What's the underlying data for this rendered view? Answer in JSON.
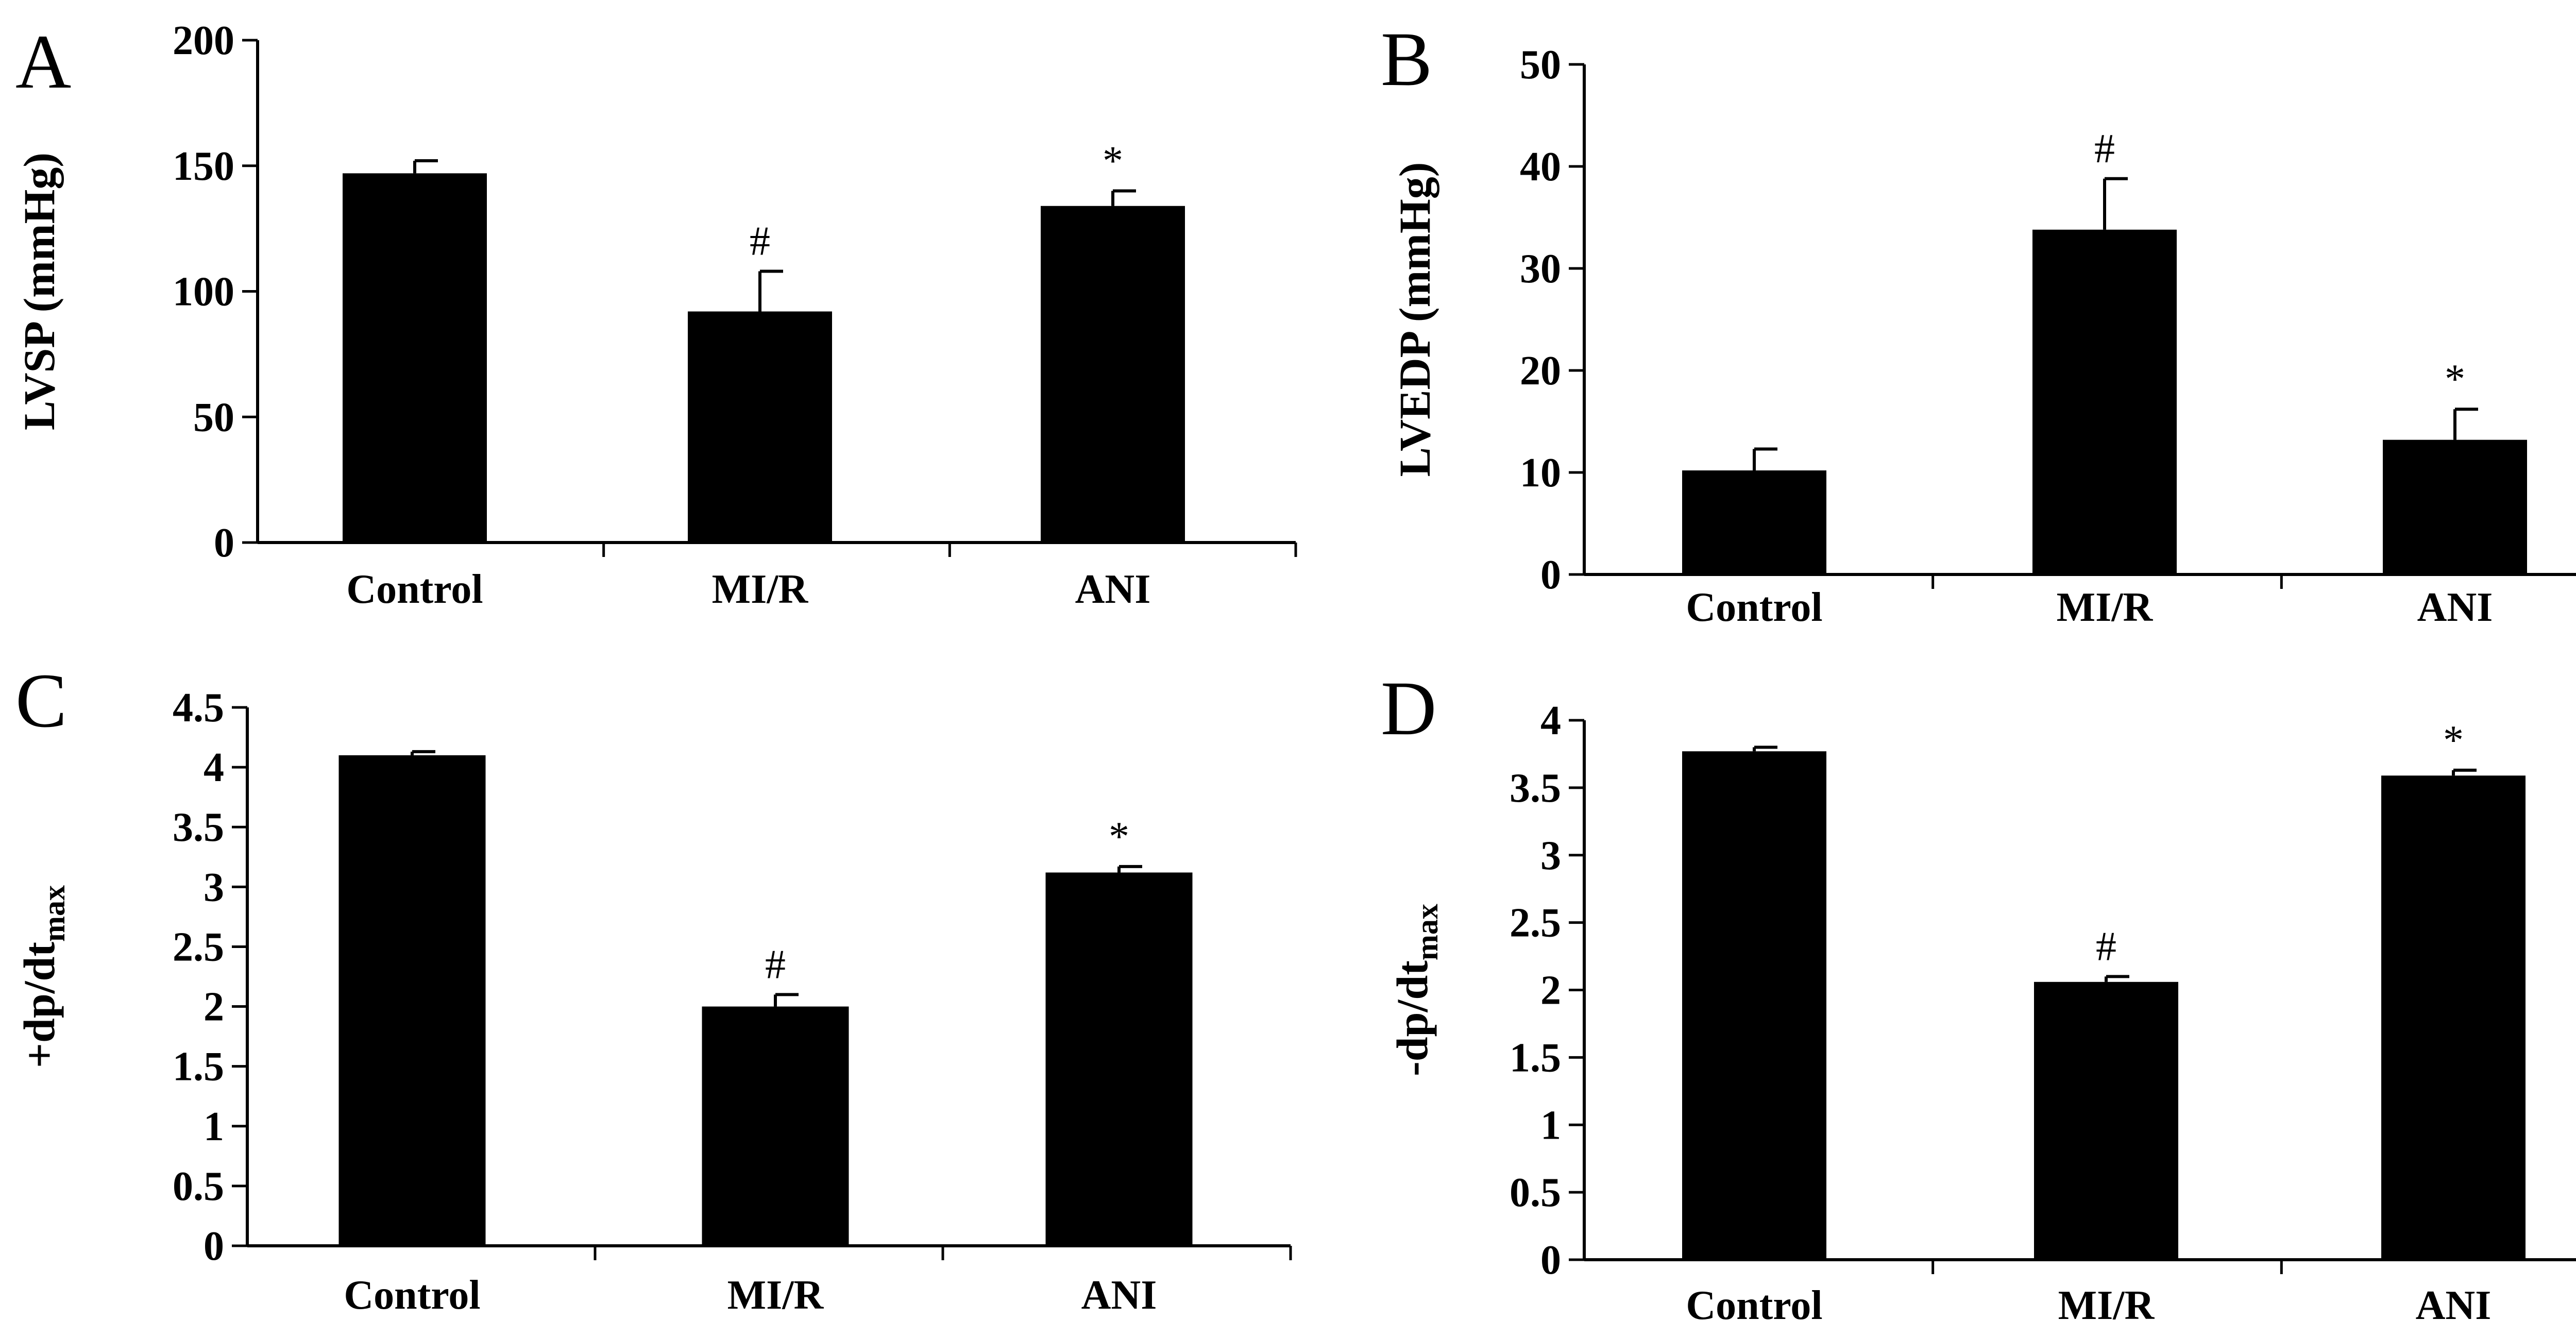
{
  "chart_data": [
    {
      "panel": "A",
      "type": "bar",
      "ylabel": "LVSP (mmHg)",
      "ylabel_sub": "",
      "categories": [
        "Control",
        "MI/R",
        "ANI"
      ],
      "values": [
        147,
        92,
        134
      ],
      "errors": [
        5,
        16,
        6
      ],
      "marks": [
        "",
        "#",
        "*"
      ],
      "ylim": [
        0,
        200
      ],
      "yticks": [
        0,
        50,
        100,
        150,
        200
      ],
      "ytick_labels": [
        "0",
        "50",
        "100",
        "150",
        "200"
      ]
    },
    {
      "panel": "B",
      "type": "bar",
      "ylabel": "LVEDP (mmHg)",
      "ylabel_sub": "",
      "categories": [
        "Control",
        "MI/R",
        "ANI"
      ],
      "values": [
        10.2,
        33.8,
        13.2
      ],
      "errors": [
        2.1,
        5.0,
        3.0
      ],
      "marks": [
        "",
        "#",
        "*"
      ],
      "ylim": [
        0,
        50
      ],
      "yticks": [
        0,
        10,
        20,
        30,
        40,
        50
      ],
      "ytick_labels": [
        "0",
        "10",
        "20",
        "30",
        "40",
        "50"
      ]
    },
    {
      "panel": "C",
      "type": "bar",
      "ylabel": "+dp/dt",
      "ylabel_sub": "max",
      "categories": [
        "Control",
        "MI/R",
        "ANI"
      ],
      "values": [
        4.1,
        2.0,
        3.12
      ],
      "errors": [
        0.03,
        0.1,
        0.05
      ],
      "marks": [
        "",
        "#",
        "*"
      ],
      "ylim": [
        0,
        4.5
      ],
      "yticks": [
        0,
        0.5,
        1,
        1.5,
        2,
        2.5,
        3,
        3.5,
        4,
        4.5
      ],
      "ytick_labels": [
        "0",
        "0.5",
        "1",
        "1.5",
        "2",
        "2.5",
        "3",
        "3.5",
        "4",
        "4.5"
      ]
    },
    {
      "panel": "D",
      "type": "bar",
      "ylabel": "-dp/dt",
      "ylabel_sub": "max",
      "categories": [
        "Control",
        "MI/R",
        "ANI"
      ],
      "values": [
        3.77,
        2.06,
        3.59
      ],
      "errors": [
        0.03,
        0.04,
        0.04
      ],
      "marks": [
        "",
        "#",
        "*"
      ],
      "ylim": [
        0,
        4
      ],
      "yticks": [
        0,
        0.5,
        1,
        1.5,
        2,
        2.5,
        3,
        3.5,
        4
      ],
      "ytick_labels": [
        "0",
        "0.5",
        "1",
        "1.5",
        "2",
        "2.5",
        "3",
        "3.5",
        "4"
      ]
    }
  ]
}
